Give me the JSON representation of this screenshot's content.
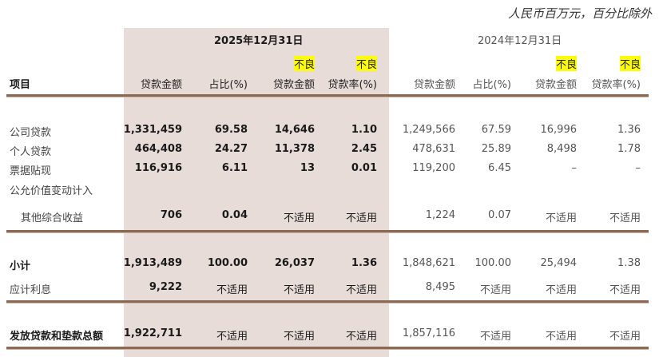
{
  "note": "人民币百万元，百分比除外",
  "periods": [
    "2025年12月31日",
    "2024年12月31日"
  ],
  "header": {
    "item": "项目",
    "npl_prefix": "不良",
    "cols": [
      "贷款金额",
      "占比(%)",
      "贷款金额",
      "贷款率(%)"
    ]
  },
  "highlight_color": "#ffff00",
  "rows": [
    {
      "label": "公司贷款",
      "v": [
        "1,331,459",
        "69.58",
        "14,646",
        "1.10",
        "1,249,566",
        "67.59",
        "16,996",
        "1.36"
      ]
    },
    {
      "label": "个人贷款",
      "v": [
        "464,408",
        "24.27",
        "11,378",
        "2.45",
        "478,631",
        "25.89",
        "8,498",
        "1.78"
      ]
    },
    {
      "label": "票据贴现",
      "v": [
        "116,916",
        "6.11",
        "13",
        "0.01",
        "119,200",
        "6.45",
        "–",
        "–"
      ]
    },
    {
      "label": "公允价值变动计入",
      "v": []
    },
    {
      "label": "其他综合收益",
      "v": [
        "706",
        "0.04",
        "不适用",
        "不适用",
        "1,224",
        "0.07",
        "不适用",
        "不适用"
      ]
    },
    {
      "label": "小计",
      "v": [
        "1,913,489",
        "100.00",
        "26,037",
        "1.36",
        "1,848,621",
        "100.00",
        "25,494",
        "1.38"
      ]
    },
    {
      "label": "应计利息",
      "v": [
        "9,222",
        "不适用",
        "不适用",
        "不适用",
        "8,495",
        "不适用",
        "不适用",
        "不适用"
      ]
    },
    {
      "label": "发放贷款和垫款总额",
      "v": [
        "1,922,711",
        "不适用",
        "不适用",
        "不适用",
        "1,857,116",
        "不适用",
        "不适用",
        "不适用"
      ]
    }
  ]
}
